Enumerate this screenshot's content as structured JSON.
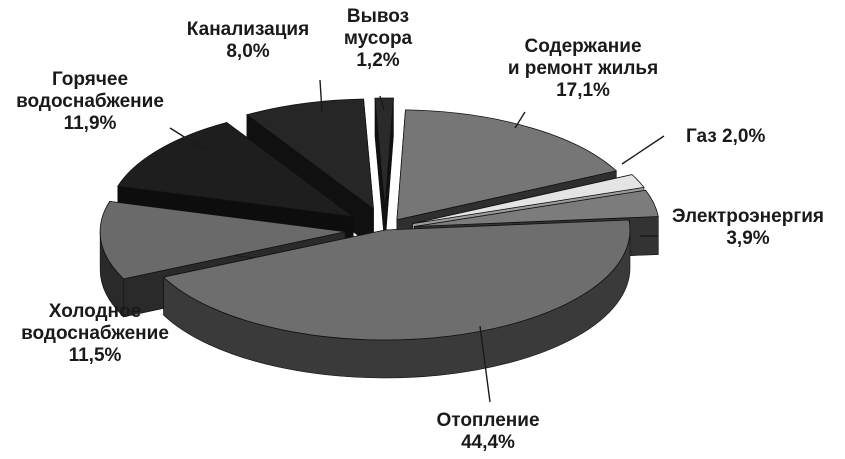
{
  "chart_data": {
    "type": "pie",
    "style": "3d-exploded",
    "title": "",
    "slices": [
      {
        "label_lines": [
          "Содержание",
          "и ремонт жилья",
          "17,1%"
        ],
        "value": 17.1,
        "top_color": "#767676",
        "side_color": "#2f2f2f"
      },
      {
        "label_lines": [
          "Газ 2,0%"
        ],
        "value": 2.0,
        "top_color": "#e4e4e4",
        "side_color": "#9a9a9a"
      },
      {
        "label_lines": [
          "Электроэнергия",
          "3,9%"
        ],
        "value": 3.9,
        "top_color": "#7c7c7c",
        "side_color": "#333333"
      },
      {
        "label_lines": [
          "Отопление",
          "44,4%"
        ],
        "value": 44.4,
        "top_color": "#6e6e6e",
        "side_color": "#3a3a3a"
      },
      {
        "label_lines": [
          "Холодное",
          "водоснабжение",
          "11,5%"
        ],
        "value": 11.5,
        "top_color": "#6a6a6a",
        "side_color": "#2a2a2a"
      },
      {
        "label_lines": [
          "Горячее",
          "водоснабжение",
          "11,9%"
        ],
        "value": 11.9,
        "top_color": "#1e1e1e",
        "side_color": "#0d0d0d"
      },
      {
        "label_lines": [
          "Канализация",
          "8,0%"
        ],
        "value": 8.0,
        "top_color": "#262626",
        "side_color": "#101010"
      },
      {
        "label_lines": [
          "Вывоз",
          "мусора",
          "1,2%"
        ],
        "value": 1.2,
        "top_color": "#2a2a2a",
        "side_color": "#111111"
      }
    ]
  }
}
